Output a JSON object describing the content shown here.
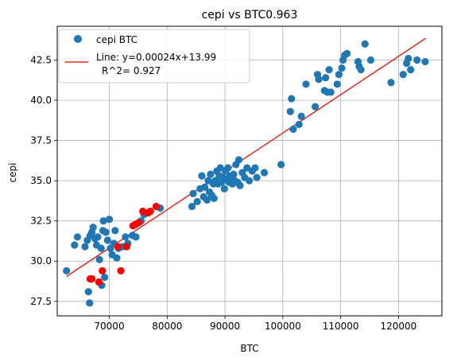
{
  "chart_data": {
    "type": "scatter",
    "title": "cepi vs BTC0.963",
    "xlabel": "BTC",
    "ylabel": "cepi",
    "xlim": [
      61000,
      127500
    ],
    "ylim": [
      26.6,
      44.6
    ],
    "xticks": [
      60000,
      70000,
      80000,
      90000,
      100000,
      110000,
      120000
    ],
    "xtick_labels": [
      "60000",
      "70000",
      "80000",
      "90000",
      "100000",
      "110000",
      "120000"
    ],
    "yticks": [
      27.5,
      30.0,
      32.5,
      35.0,
      37.5,
      40.0,
      42.5
    ],
    "ytick_labels": [
      "27.5",
      "30.0",
      "32.5",
      "35.0",
      "37.5",
      "40.0",
      "42.5"
    ],
    "grid": true,
    "legend_position": "upper-left",
    "legend": [
      {
        "label": "cepi BTC",
        "kind": "marker",
        "color": "#1f77b4"
      },
      {
        "label": "Line: y=0.00024x+13.99",
        "label2": "R^2= 0.927",
        "kind": "line",
        "color": "#e8291c"
      }
    ],
    "colors": {
      "points": "#1f77b4",
      "highlight": "#ff0000",
      "fit": "#e8291c"
    },
    "fit_line": {
      "slope": 0.00024,
      "intercept": 13.99,
      "x_range": [
        62600,
        124700
      ],
      "y_range": [
        29.05,
        43.85
      ]
    },
    "series": [
      {
        "name": "cepi BTC",
        "color": "#1f77b4",
        "points": [
          [
            62600,
            29.4
          ],
          [
            64000,
            31.0
          ],
          [
            64500,
            31.5
          ],
          [
            65800,
            30.9
          ],
          [
            66200,
            31.3
          ],
          [
            66400,
            28.1
          ],
          [
            66600,
            27.4
          ],
          [
            66700,
            31.6
          ],
          [
            67000,
            31.8
          ],
          [
            67200,
            32.1
          ],
          [
            67500,
            31.4
          ],
          [
            67800,
            31.0
          ],
          [
            68000,
            31.5
          ],
          [
            68300,
            30.1
          ],
          [
            68600,
            30.8
          ],
          [
            68700,
            28.5
          ],
          [
            68900,
            31.9
          ],
          [
            69000,
            32.5
          ],
          [
            69200,
            29.0
          ],
          [
            69400,
            31.8
          ],
          [
            69700,
            31.3
          ],
          [
            70000,
            32.6
          ],
          [
            70200,
            30.8
          ],
          [
            70500,
            30.4
          ],
          [
            70800,
            31.1
          ],
          [
            71000,
            31.9
          ],
          [
            71300,
            30.2
          ],
          [
            71600,
            30.8
          ],
          [
            72300,
            30.9
          ],
          [
            72800,
            31.5
          ],
          [
            73200,
            31.1
          ],
          [
            74000,
            31.6
          ],
          [
            74600,
            31.5
          ],
          [
            75500,
            32.5
          ],
          [
            76000,
            32.9
          ],
          [
            78800,
            33.3
          ],
          [
            84300,
            33.4
          ],
          [
            84500,
            34.2
          ],
          [
            85200,
            33.7
          ],
          [
            85700,
            34.5
          ],
          [
            86000,
            35.3
          ],
          [
            86300,
            34.0
          ],
          [
            86500,
            34.6
          ],
          [
            86900,
            33.8
          ],
          [
            87100,
            35.0
          ],
          [
            87300,
            34.3
          ],
          [
            87500,
            35.4
          ],
          [
            87700,
            34.1
          ],
          [
            88000,
            34.8
          ],
          [
            88100,
            33.9
          ],
          [
            88300,
            35.0
          ],
          [
            88600,
            35.6
          ],
          [
            88800,
            34.8
          ],
          [
            89000,
            35.3
          ],
          [
            89200,
            35.8
          ],
          [
            89400,
            34.9
          ],
          [
            89700,
            35.2
          ],
          [
            89900,
            34.5
          ],
          [
            90100,
            35.6
          ],
          [
            90300,
            35.1
          ],
          [
            90500,
            35.8
          ],
          [
            90700,
            34.9
          ],
          [
            90900,
            35.3
          ],
          [
            91100,
            35.0
          ],
          [
            91300,
            34.8
          ],
          [
            91500,
            35.4
          ],
          [
            91700,
            35.0
          ],
          [
            91900,
            36.0
          ],
          [
            92200,
            34.9
          ],
          [
            92400,
            36.3
          ],
          [
            92600,
            34.7
          ],
          [
            93000,
            35.5
          ],
          [
            93400,
            35.2
          ],
          [
            93800,
            35.8
          ],
          [
            94200,
            35.0
          ],
          [
            94700,
            35.6
          ],
          [
            95200,
            35.8
          ],
          [
            95500,
            35.2
          ],
          [
            96800,
            35.5
          ],
          [
            99700,
            36.0
          ],
          [
            101300,
            39.3
          ],
          [
            101500,
            40.1
          ],
          [
            101800,
            38.2
          ],
          [
            102800,
            38.5
          ],
          [
            103200,
            39.0
          ],
          [
            104000,
            41.0
          ],
          [
            105600,
            39.6
          ],
          [
            106000,
            41.6
          ],
          [
            106200,
            41.3
          ],
          [
            107200,
            40.6
          ],
          [
            107400,
            41.4
          ],
          [
            107700,
            40.5
          ],
          [
            108000,
            41.9
          ],
          [
            108300,
            40.5
          ],
          [
            109400,
            41.0
          ],
          [
            109700,
            41.6
          ],
          [
            110200,
            42.0
          ],
          [
            110400,
            42.5
          ],
          [
            110700,
            42.8
          ],
          [
            111100,
            42.9
          ],
          [
            113000,
            42.4
          ],
          [
            113200,
            42.1
          ],
          [
            113500,
            41.9
          ],
          [
            114200,
            43.5
          ],
          [
            115200,
            42.5
          ],
          [
            118700,
            41.1
          ],
          [
            120800,
            41.6
          ],
          [
            121400,
            42.3
          ],
          [
            121700,
            42.6
          ],
          [
            122100,
            41.9
          ],
          [
            123200,
            42.5
          ],
          [
            124600,
            42.4
          ]
        ]
      },
      {
        "name": "",
        "color": "#ff0000",
        "points": [
          [
            66700,
            28.9
          ],
          [
            67000,
            28.9
          ],
          [
            68200,
            28.7
          ],
          [
            68800,
            29.4
          ],
          [
            71500,
            30.9
          ],
          [
            72000,
            29.4
          ],
          [
            73000,
            30.9
          ],
          [
            74100,
            32.2
          ],
          [
            74600,
            32.3
          ],
          [
            75100,
            32.4
          ],
          [
            75800,
            33.1
          ],
          [
            76700,
            33.0
          ],
          [
            77100,
            33.1
          ],
          [
            78100,
            33.4
          ]
        ]
      }
    ]
  }
}
